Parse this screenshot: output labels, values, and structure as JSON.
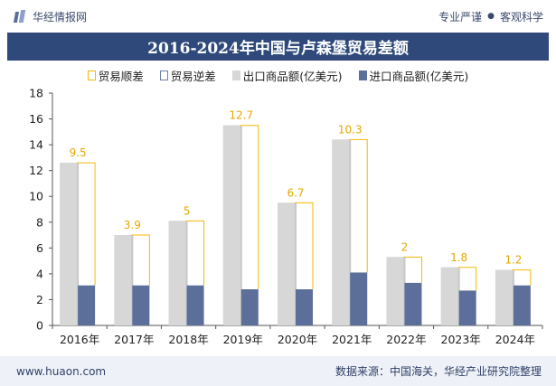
{
  "header": {
    "brand": "华经情报网",
    "slogan_left": "专业严谨",
    "slogan_sep": "●",
    "slogan_right": "客观科学"
  },
  "title": "2016-2024年中国与卢森堡贸易差额",
  "legend": {
    "surplus": "贸易顺差",
    "deficit": "贸易逆差",
    "exports": "出口商品额(亿美元)",
    "imports": "进口商品额(亿美元)"
  },
  "footer": {
    "website": "www.huaon.com",
    "source": "数据来源：中国海关，华经产业研究院整理"
  },
  "colors": {
    "exports": "#d7d7d7",
    "imports": "#5b6f9a",
    "surplus": "#f5b800",
    "title_bg": "#2f4a7a"
  },
  "chart_data": {
    "type": "bar",
    "title": "2016-2024年中国与卢森堡贸易差额",
    "categories": [
      "2016年",
      "2017年",
      "2018年",
      "2019年",
      "2020年",
      "2021年",
      "2022年",
      "2023年",
      "2024年"
    ],
    "series": [
      {
        "name": "出口商品额(亿美元)",
        "values": [
          12.6,
          7.0,
          8.1,
          15.5,
          9.5,
          14.4,
          5.3,
          4.5,
          4.3
        ]
      },
      {
        "name": "进口商品额(亿美元)",
        "values": [
          3.1,
          3.1,
          3.1,
          2.8,
          2.8,
          4.1,
          3.3,
          2.7,
          3.1
        ]
      },
      {
        "name": "贸易顺差",
        "values": [
          9.5,
          3.9,
          5,
          12.7,
          6.7,
          10.3,
          2,
          1.8,
          1.2
        ]
      }
    ],
    "surplus_labels": [
      "9.5",
      "3.9",
      "5",
      "12.7",
      "6.7",
      "10.3",
      "2",
      "1.8",
      "1.2"
    ],
    "yticks": [
      "0",
      "2",
      "4",
      "6",
      "8",
      "10",
      "12",
      "14",
      "16",
      "18"
    ],
    "ylim": [
      0,
      18
    ],
    "xlabel": "",
    "ylabel": "",
    "grid": false,
    "legend_position": "top-center"
  }
}
